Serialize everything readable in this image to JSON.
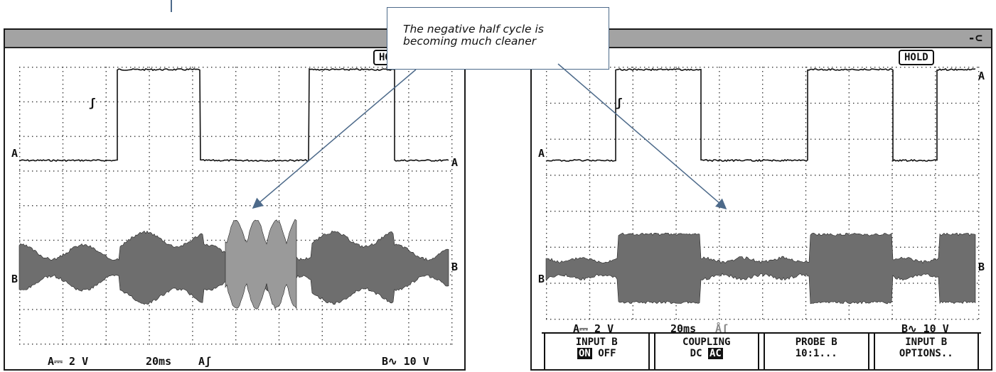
{
  "callout": {
    "text_line1": "The negative half cycle is",
    "text_line2": "becoming much cleaner"
  },
  "left_scope": {
    "hold_label": "HO",
    "ch_a_marker": "A",
    "ch_a_marker_right": "A",
    "ch_b_marker": "B",
    "ch_b_marker_right": "B",
    "trigger_glyph": "ʃ",
    "readout_a": "A⎓ 2 V",
    "readout_time": "20ms",
    "readout_trigger": "Aʃ",
    "readout_b": "B∿ 10 V"
  },
  "right_scope": {
    "hold_label": "HOLD",
    "plug_icon": "-⊂",
    "ch_a_marker": "A",
    "ch_a_marker_right": "A",
    "ch_b_marker": "B",
    "ch_b_marker_right": "B",
    "trigger_glyph": "ʃ",
    "readout_a": "A⎓ 2 V",
    "readout_time": "20ms",
    "readout_trigger": "Åʃ",
    "readout_b": "B∿ 10 V",
    "softkeys": [
      {
        "title": "INPUT B",
        "opt_on": "ON",
        "opt_off": "OFF"
      },
      {
        "title": "COUPLING",
        "opt_dc": "DC",
        "opt_ac": "AC"
      },
      {
        "title": "PROBE B",
        "value": "10:1..."
      },
      {
        "title": "INPUT B",
        "value": "OPTIONS.."
      }
    ]
  },
  "colors": {
    "trace": "#111111",
    "envelope": "#6e6e6e",
    "envelope_light": "#9a9a9a",
    "grid": "#333333",
    "header": "#a3a3a3",
    "arrow": "#4d6a8a"
  }
}
